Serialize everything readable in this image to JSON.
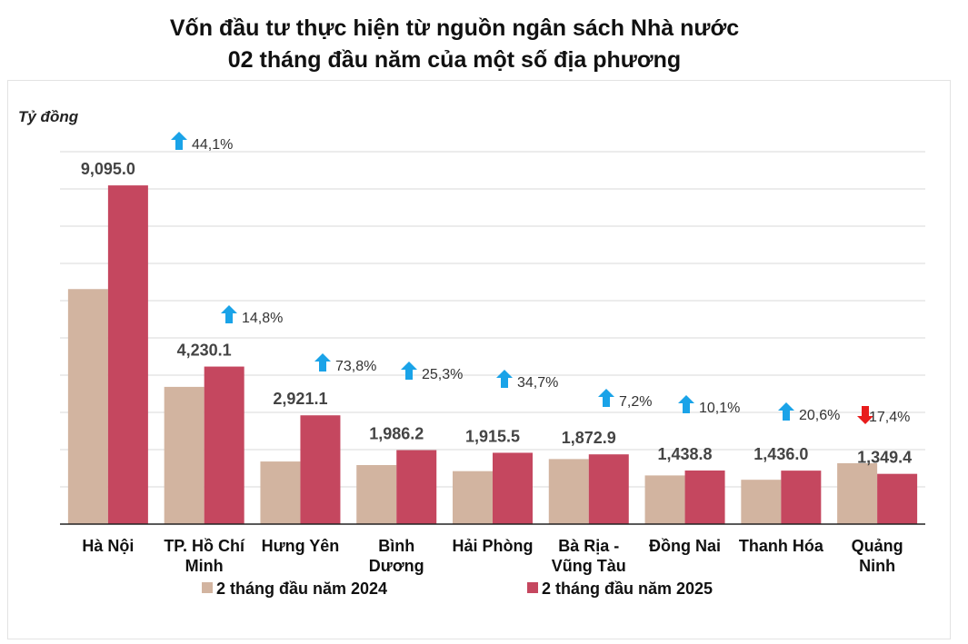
{
  "chart_data": {
    "type": "bar",
    "title": [
      "Vốn đầu tư thực hiện từ nguồn ngân sách Nhà nước",
      "02 tháng đầu năm của một số địa phương"
    ],
    "ylabel": "Tỷ đồng",
    "ylim": [
      0,
      10000
    ],
    "grid": true,
    "legend_position": "bottom",
    "categories": [
      [
        "Hà Nội"
      ],
      [
        "TP. Hồ Chí",
        "Minh"
      ],
      [
        "Hưng Yên"
      ],
      [
        "Bình",
        "Dương"
      ],
      [
        "Hải Phòng"
      ],
      [
        "Bà Rịa -",
        "Vũng Tàu"
      ],
      [
        "Đồng Nai"
      ],
      [
        "Thanh Hóa"
      ],
      [
        "Quảng",
        "Ninh"
      ]
    ],
    "series": [
      {
        "name": "2 tháng đầu năm 2024",
        "color": "#d2b4a0",
        "values": [
          6311,
          3685,
          1681,
          1585,
          1422,
          1747,
          1307,
          1191,
          1634
        ]
      },
      {
        "name": "2 tháng đầu năm 2025",
        "color": "#c5475f",
        "values": [
          9095.0,
          4230.1,
          2921.1,
          1986.2,
          1915.5,
          1872.9,
          1438.8,
          1436.0,
          1349.4
        ],
        "data_labels": [
          "9,095.0",
          "4,230.1",
          "2,921.1",
          "1,986.2",
          "1,915.5",
          "1,872.9",
          "1,438.8",
          "1,436.0",
          "1,349.4"
        ]
      }
    ],
    "changes": [
      {
        "label": "44,1%",
        "direction": "up"
      },
      {
        "label": "14,8%",
        "direction": "up"
      },
      {
        "label": "73,8%",
        "direction": "up"
      },
      {
        "label": "25,3%",
        "direction": "up"
      },
      {
        "label": "34,7%",
        "direction": "up"
      },
      {
        "label": "7,2%",
        "direction": "up"
      },
      {
        "label": "10,1%",
        "direction": "up"
      },
      {
        "label": "20,6%",
        "direction": "up"
      },
      {
        "label": "17,4%",
        "direction": "down"
      }
    ],
    "colors": {
      "up": "#1aa3e8",
      "down": "#e81c1c",
      "grid": "#d9d9d9"
    }
  }
}
